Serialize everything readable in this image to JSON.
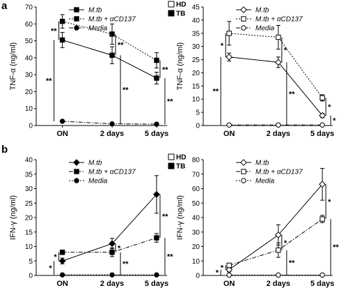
{
  "figure": {
    "panel_a_label": "a",
    "panel_b_label": "b"
  },
  "legend_tags": {
    "hd": "HD",
    "tb": "TB"
  },
  "chart_data": [
    {
      "id": "a-left",
      "type": "line",
      "panel": "a",
      "ylabel": "TNF-α (ng/ml)",
      "ylim": [
        0,
        70
      ],
      "yticks": [
        0,
        10,
        20,
        30,
        40,
        50,
        60,
        70
      ],
      "categories": [
        "ON",
        "2 days",
        "5 days"
      ],
      "hd_tb_tags": true,
      "series": [
        {
          "name": "M.tb",
          "values": [
            50.5,
            41.5,
            28
          ],
          "errors": [
            4.5,
            5,
            3.5
          ],
          "style": "solid",
          "marker": "square",
          "fill": "#000000"
        },
        {
          "name": "M.tb + αCD137",
          "values": [
            61.5,
            54,
            38.5
          ],
          "errors": [
            4,
            6,
            4.5
          ],
          "style": "dotted",
          "marker": "square",
          "fill": "#000000"
        },
        {
          "name": "Media",
          "values": [
            2.5,
            1,
            0.8
          ],
          "errors": [
            0,
            0,
            0
          ],
          "style": "dashdot",
          "marker": "circle",
          "fill": "#000000"
        }
      ],
      "significance": [
        {
          "between": [
            "M.tb",
            "M.tb + αCD137"
          ],
          "at": "ON",
          "label": "**"
        },
        {
          "between": [
            "Media",
            "M.tb"
          ],
          "at": "ON",
          "label": "**"
        },
        {
          "between": [
            "M.tb",
            "M.tb + αCD137"
          ],
          "at": "2 days",
          "label": "**"
        },
        {
          "between": [
            "Media",
            "M.tb"
          ],
          "at": "2 days",
          "label": "**"
        },
        {
          "between": [
            "M.tb",
            "M.tb + αCD137"
          ],
          "at": "5 days",
          "label": "**"
        },
        {
          "between": [
            "Media",
            "M.tb"
          ],
          "at": "5 days",
          "label": "**"
        }
      ]
    },
    {
      "id": "a-right",
      "type": "line",
      "panel": "a",
      "ylabel": "TNF-α (ng/ml)",
      "ylim": [
        0,
        45
      ],
      "yticks": [
        0,
        5,
        10,
        15,
        20,
        25,
        30,
        35,
        40,
        45
      ],
      "categories": [
        "ON",
        "2 days",
        "5 days"
      ],
      "hd_tb_tags": false,
      "series": [
        {
          "name": "M.tb",
          "values": [
            26,
            24,
            3.8
          ],
          "errors": [
            1.5,
            2,
            0.8
          ],
          "style": "solid",
          "marker": "diamond",
          "fill": "#ffffff"
        },
        {
          "name": "M.tb + αCD137",
          "values": [
            35,
            33.5,
            10.5
          ],
          "errors": [
            4.5,
            4.5,
            1.2
          ],
          "style": "dotted",
          "marker": "square",
          "fill": "#ffffff"
        },
        {
          "name": "Media",
          "values": [
            0.2,
            0.2,
            0.2
          ],
          "errors": [
            0,
            0,
            0
          ],
          "style": "dashdot",
          "marker": "circle",
          "fill": "#ffffff"
        }
      ],
      "significance": [
        {
          "between": [
            "M.tb",
            "M.tb + αCD137"
          ],
          "at": "ON",
          "label": "*"
        },
        {
          "between": [
            "Media",
            "M.tb"
          ],
          "at": "ON",
          "label": "**"
        },
        {
          "between": [
            "M.tb",
            "M.tb + αCD137"
          ],
          "at": "2 days",
          "label": "*"
        },
        {
          "between": [
            "Media",
            "M.tb"
          ],
          "at": "2 days",
          "label": "**"
        },
        {
          "between": [
            "M.tb",
            "M.tb + αCD137"
          ],
          "at": "5 days",
          "label": "*"
        },
        {
          "between": [
            "Media",
            "M.tb"
          ],
          "at": "5 days",
          "label": "*"
        }
      ]
    },
    {
      "id": "b-left",
      "type": "line",
      "panel": "b",
      "ylabel": "IFN-γ (ng/ml)",
      "ylim": [
        0,
        40
      ],
      "yticks": [
        0,
        5,
        10,
        15,
        20,
        25,
        30,
        35,
        40
      ],
      "categories": [
        "ON",
        "2 days",
        "5 days"
      ],
      "hd_tb_tags": true,
      "series": [
        {
          "name": "M.tb",
          "values": [
            5,
            11,
            28
          ],
          "errors": [
            1,
            1.8,
            6.5
          ],
          "style": "solid",
          "marker": "diamond",
          "fill": "#000000"
        },
        {
          "name": "M.tb + αCD137",
          "values": [
            8,
            8,
            13
          ],
          "errors": [
            0.8,
            1.5,
            1.5
          ],
          "style": "dashdot",
          "marker": "square",
          "fill": "#000000"
        },
        {
          "name": "Media",
          "values": [
            0.2,
            0.2,
            0.2
          ],
          "errors": [
            0,
            0,
            0
          ],
          "style": "dotted",
          "marker": "circle",
          "fill": "#000000"
        }
      ],
      "significance": [
        {
          "between": [
            "M.tb",
            "M.tb + αCD137"
          ],
          "at": "ON",
          "label": "*"
        },
        {
          "between": [
            "Media",
            "M.tb"
          ],
          "at": "ON",
          "label": "*"
        },
        {
          "between": [
            "M.tb",
            "M.tb + αCD137"
          ],
          "at": "2 days",
          "label": "*"
        },
        {
          "between": [
            "Media",
            "M.tb + αCD137"
          ],
          "at": "2 days",
          "label": "**"
        },
        {
          "between": [
            "M.tb",
            "M.tb + αCD137"
          ],
          "at": "5 days",
          "label": "**"
        },
        {
          "between": [
            "Media",
            "M.tb + αCD137"
          ],
          "at": "5 days",
          "label": "**"
        }
      ]
    },
    {
      "id": "b-right",
      "type": "line",
      "panel": "b",
      "ylabel": "IFN-γ (ng/ml)",
      "ylim": [
        0,
        80
      ],
      "yticks": [
        0,
        10,
        20,
        30,
        40,
        50,
        60,
        70,
        80
      ],
      "categories": [
        "ON",
        "2 days",
        "5 days"
      ],
      "hd_tb_tags": false,
      "series": [
        {
          "name": "M.tb",
          "values": [
            4,
            28,
            63
          ],
          "errors": [
            1.5,
            7,
            11
          ],
          "style": "solid",
          "marker": "diamond",
          "fill": "#ffffff"
        },
        {
          "name": "M.tb + αCD137",
          "values": [
            7,
            17.5,
            39
          ],
          "errors": [
            1.5,
            5,
            2.5
          ],
          "style": "dashdot",
          "marker": "square",
          "fill": "#ffffff"
        },
        {
          "name": "Media",
          "values": [
            0.3,
            0.3,
            0.3
          ],
          "errors": [
            0,
            0,
            0
          ],
          "style": "dotted",
          "marker": "circle",
          "fill": "#ffffff"
        }
      ],
      "significance": [
        {
          "between": [
            "M.tb",
            "M.tb + αCD137"
          ],
          "at": "ON",
          "label": "*"
        },
        {
          "between": [
            "Media",
            "M.tb"
          ],
          "at": "ON",
          "label": "*"
        },
        {
          "between": [
            "M.tb",
            "M.tb + αCD137"
          ],
          "at": "2 days",
          "label": "*"
        },
        {
          "between": [
            "Media",
            "M.tb + αCD137"
          ],
          "at": "2 days",
          "label": "**"
        },
        {
          "between": [
            "M.tb",
            "M.tb + αCD137"
          ],
          "at": "5 days",
          "label": "*"
        },
        {
          "between": [
            "Media",
            "M.tb + αCD137"
          ],
          "at": "5 days",
          "label": "**"
        }
      ]
    }
  ]
}
